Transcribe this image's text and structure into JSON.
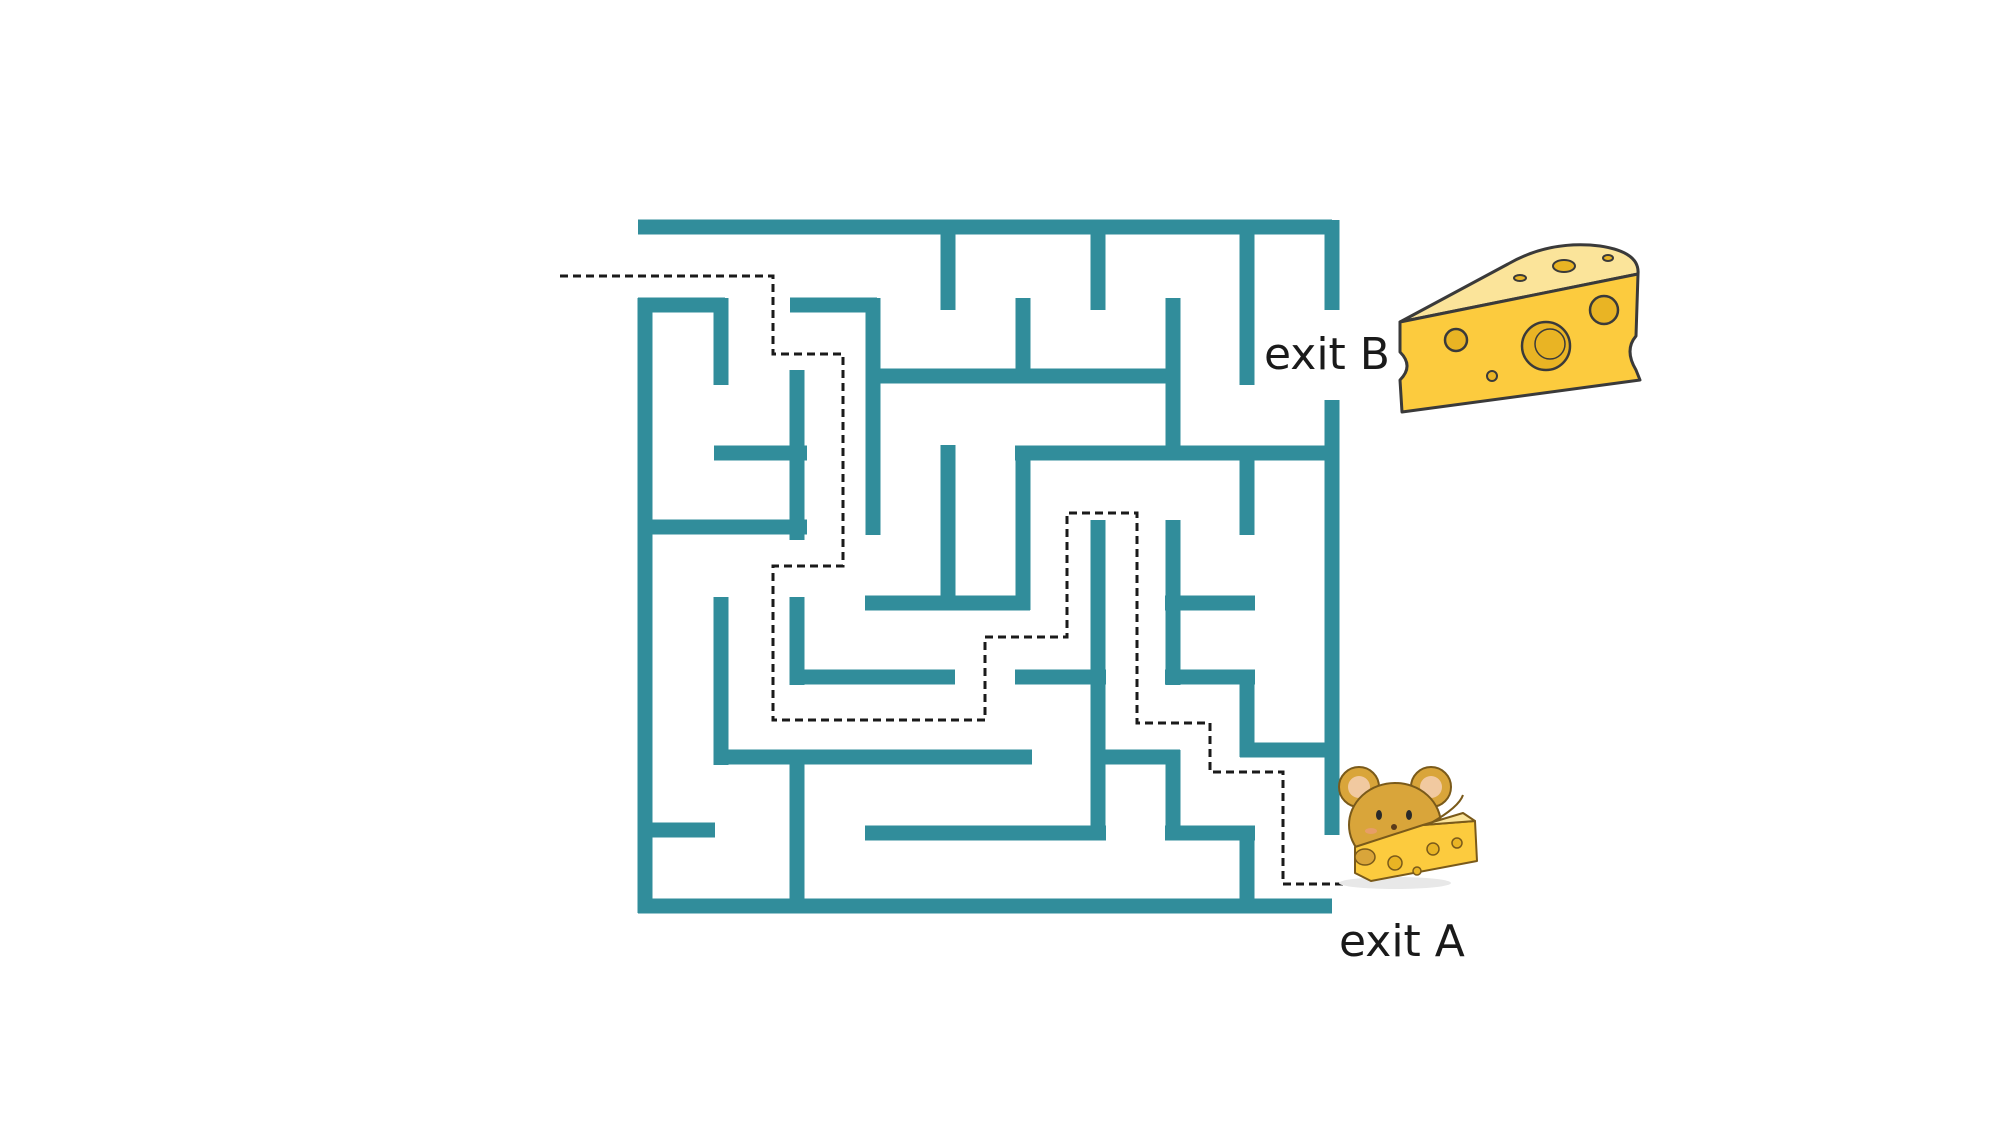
{
  "labels": {
    "exit_b": "exit B",
    "exit_a": "exit A"
  },
  "colors": {
    "wall": "#318d9b",
    "path": "#1a1a1a",
    "cheese": "#fccb3e",
    "cheese_outline": "#3a3a3a",
    "mouse": "#d9a53a",
    "background": "#ffffff"
  },
  "icons": {
    "cheese": "cheese-wedge-icon",
    "mouse": "mouse-with-cheese-icon"
  }
}
